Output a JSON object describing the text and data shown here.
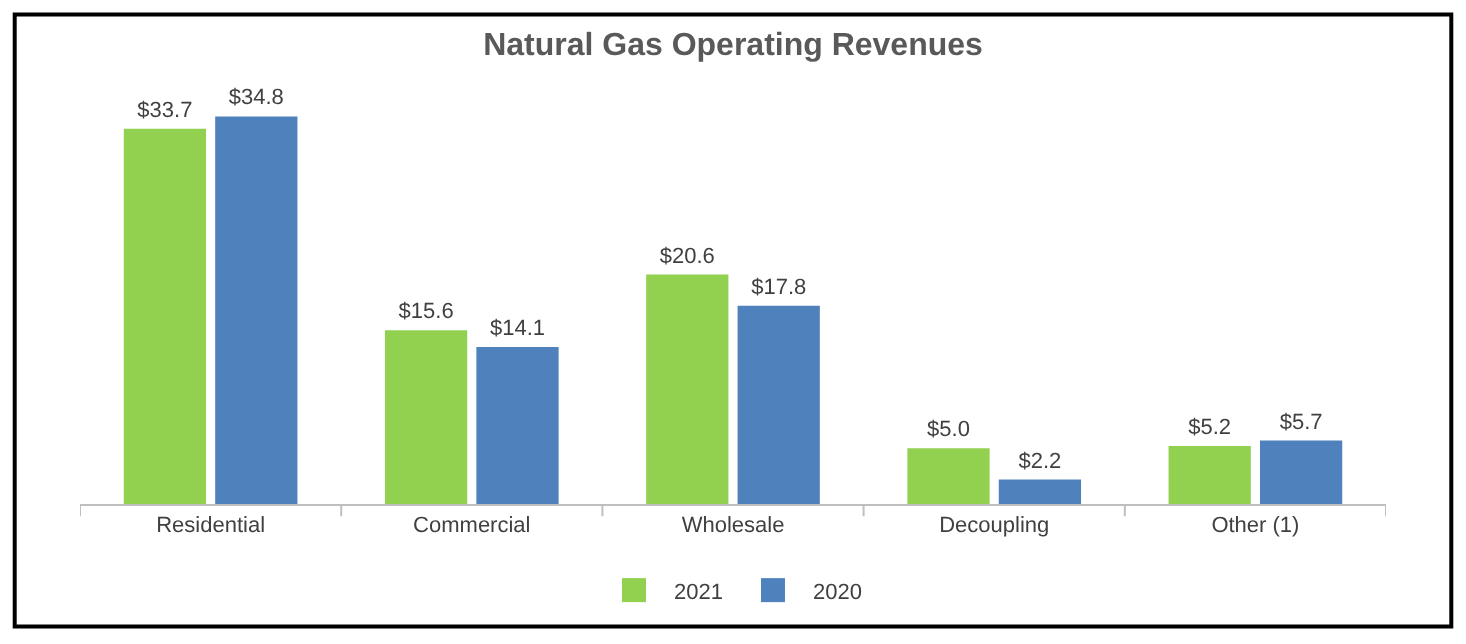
{
  "chart_data": {
    "type": "bar",
    "title": "Natural Gas Operating Revenues",
    "categories": [
      "Residential",
      "Commercial",
      "Wholesale",
      "Decoupling",
      "Other (1)"
    ],
    "series": [
      {
        "name": "2021",
        "color": "#92d050",
        "values": [
          33.7,
          15.6,
          20.6,
          5.0,
          5.2
        ],
        "value_labels": [
          "$33.7",
          "$15.6",
          "$20.6",
          "$5.0",
          "$5.2"
        ]
      },
      {
        "name": "2020",
        "color": "#4f81bd",
        "values": [
          34.8,
          14.1,
          17.8,
          2.2,
          5.7
        ],
        "value_labels": [
          "$34.8",
          "$14.1",
          "$17.8",
          "$2.2",
          "$5.7"
        ]
      }
    ],
    "legend": "bottom"
  }
}
